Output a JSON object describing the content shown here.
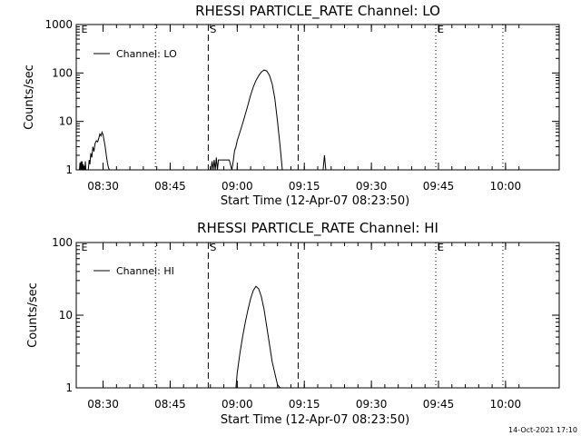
{
  "chart_data": [
    {
      "type": "line",
      "title": "RHESSI PARTICLE_RATE Channel: LO",
      "xlabel": "Start Time (12-Apr-07 08:23:50)",
      "ylabel": "Counts/sec",
      "yscale": "log",
      "ylim": [
        1,
        1000
      ],
      "xlim": [
        8.4,
        10.2
      ],
      "y_tick_labels": [
        "1",
        "10",
        "100",
        "1000"
      ],
      "y_tick_values": [
        1,
        10,
        100,
        1000
      ],
      "legend": "Channel: LO",
      "legend_position": "top-left",
      "series": [
        {
          "name": "Channel: LO",
          "x": [
            8.412,
            8.414,
            8.416,
            8.418,
            8.42,
            8.422,
            8.424,
            8.426,
            8.428,
            8.43,
            8.432,
            8.434,
            8.436,
            8.445,
            8.448,
            8.451,
            8.454,
            8.458,
            8.462,
            8.466,
            8.47,
            8.475,
            8.48,
            8.484,
            8.488,
            8.492,
            8.496,
            8.5,
            8.504,
            8.508,
            8.512,
            8.516,
            8.52,
            8.524,
            8.902,
            8.906,
            8.91,
            8.914,
            8.918,
            8.922,
            8.926,
            8.93,
            8.97,
            8.98,
            8.985,
            8.99,
            8.995,
            9.0,
            9.01,
            9.02,
            9.03,
            9.04,
            9.05,
            9.06,
            9.07,
            9.08,
            9.09,
            9.1,
            9.11,
            9.12,
            9.13,
            9.14,
            9.15,
            9.16,
            9.168,
            9.32,
            9.325,
            9.33
          ],
          "y": [
            1,
            1.4,
            1,
            1.5,
            1,
            1.5,
            1,
            1.3,
            1,
            1.2,
            1,
            1.5,
            1,
            1,
            1.6,
            1.3,
            2.2,
            1.8,
            3,
            2.4,
            3.5,
            4,
            3.8,
            4.5,
            5.5,
            5,
            6,
            5.2,
            4,
            3,
            2,
            1.4,
            1.1,
            1,
            1,
            1.5,
            1,
            1.6,
            1,
            1.8,
            1,
            1.6,
            1.6,
            1,
            1.5,
            2.5,
            3,
            4,
            6,
            9,
            14,
            22,
            35,
            52,
            70,
            88,
            105,
            115,
            110,
            90,
            60,
            30,
            10,
            3,
            1,
            1,
            2,
            1
          ]
        }
      ],
      "vlines_dotted": [
        8.695,
        9.74,
        9.99
      ],
      "vlines_dashed": [
        8.892,
        9.227
      ],
      "markers": [
        {
          "label": "E",
          "at": 8.412
        },
        {
          "label": "S",
          "at": 8.892
        },
        {
          "label": "E",
          "at": 9.74
        }
      ]
    },
    {
      "type": "line",
      "title": "RHESSI PARTICLE_RATE Channel: HI",
      "xlabel": "Start Time (12-Apr-07 08:23:50)",
      "ylabel": "Counts/sec",
      "yscale": "log",
      "ylim": [
        1,
        100
      ],
      "xlim": [
        8.4,
        10.2
      ],
      "y_tick_labels": [
        "1",
        "10",
        "100"
      ],
      "y_tick_values": [
        1,
        10,
        100
      ],
      "legend": "Channel: HI",
      "legend_position": "top-left",
      "series": [
        {
          "name": "Channel: HI",
          "x": [
            8.995,
            9.0,
            9.01,
            9.02,
            9.03,
            9.04,
            9.05,
            9.06,
            9.07,
            9.08,
            9.09,
            9.1,
            9.11,
            9.12,
            9.13,
            9.14,
            9.15,
            9.16
          ],
          "y": [
            1,
            1.6,
            3,
            5,
            8,
            12,
            17,
            22,
            25,
            23,
            18,
            12,
            7,
            4,
            2.3,
            1.6,
            1.1,
            1
          ]
        }
      ],
      "vlines_dotted": [
        8.695,
        9.74,
        9.99
      ],
      "vlines_dashed": [
        8.892,
        9.227
      ],
      "markers": [
        {
          "label": "E",
          "at": 8.412
        },
        {
          "label": "S",
          "at": 8.892
        },
        {
          "label": "E",
          "at": 9.74
        }
      ]
    }
  ],
  "x_ticks": {
    "values": [
      8.5,
      8.75,
      9.0,
      9.25,
      9.5,
      9.75,
      10.0
    ],
    "labels": [
      "08:30",
      "08:45",
      "09:00",
      "09:15",
      "09:30",
      "09:45",
      "10:00"
    ]
  },
  "timestamp": "14-Oct-2021 17:10"
}
